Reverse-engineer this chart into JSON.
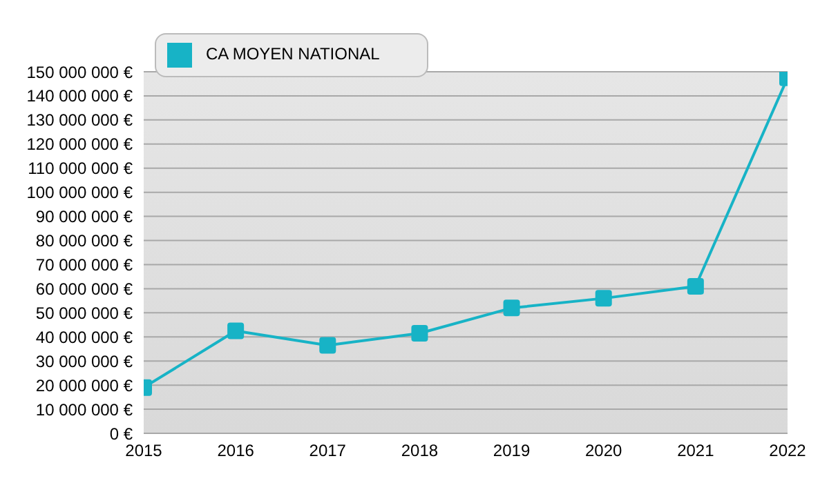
{
  "chart_data": {
    "type": "line",
    "x": [
      2015,
      2016,
      2017,
      2018,
      2019,
      2020,
      2021,
      2022
    ],
    "series": [
      {
        "name": "CA MOYEN NATIONAL",
        "color": "#17b3c6",
        "values": [
          19000000,
          42500000,
          36500000,
          41500000,
          52000000,
          56000000,
          61000000,
          147500000
        ]
      }
    ],
    "xlim": [
      2015,
      2022
    ],
    "xticks": [
      2015,
      2016,
      2017,
      2018,
      2019,
      2020,
      2021,
      2022
    ],
    "ylim": [
      0,
      150000000
    ],
    "yticks": [
      {
        "value": 0,
        "label": "0 €"
      },
      {
        "value": 10000000,
        "label": "10 000 000 €"
      },
      {
        "value": 20000000,
        "label": "20 000 000 €"
      },
      {
        "value": 30000000,
        "label": "30 000 000 €"
      },
      {
        "value": 40000000,
        "label": "40 000 000 €"
      },
      {
        "value": 50000000,
        "label": "50 000 000 €"
      },
      {
        "value": 60000000,
        "label": "60 000 000 €"
      },
      {
        "value": 70000000,
        "label": "70 000 000 €"
      },
      {
        "value": 80000000,
        "label": "80 000 000 €"
      },
      {
        "value": 90000000,
        "label": "90 000 000 €"
      },
      {
        "value": 100000000,
        "label": "100 000 000 €"
      },
      {
        "value": 110000000,
        "label": "110 000 000 €"
      },
      {
        "value": 120000000,
        "label": "120 000 000 €"
      },
      {
        "value": 130000000,
        "label": "130 000 000 €"
      },
      {
        "value": 140000000,
        "label": "140 000 000 €"
      },
      {
        "value": 150000000,
        "label": "150 000 000 €"
      }
    ],
    "grid": "y",
    "legend": "top left",
    "marker": "square",
    "line_style": "solid"
  }
}
